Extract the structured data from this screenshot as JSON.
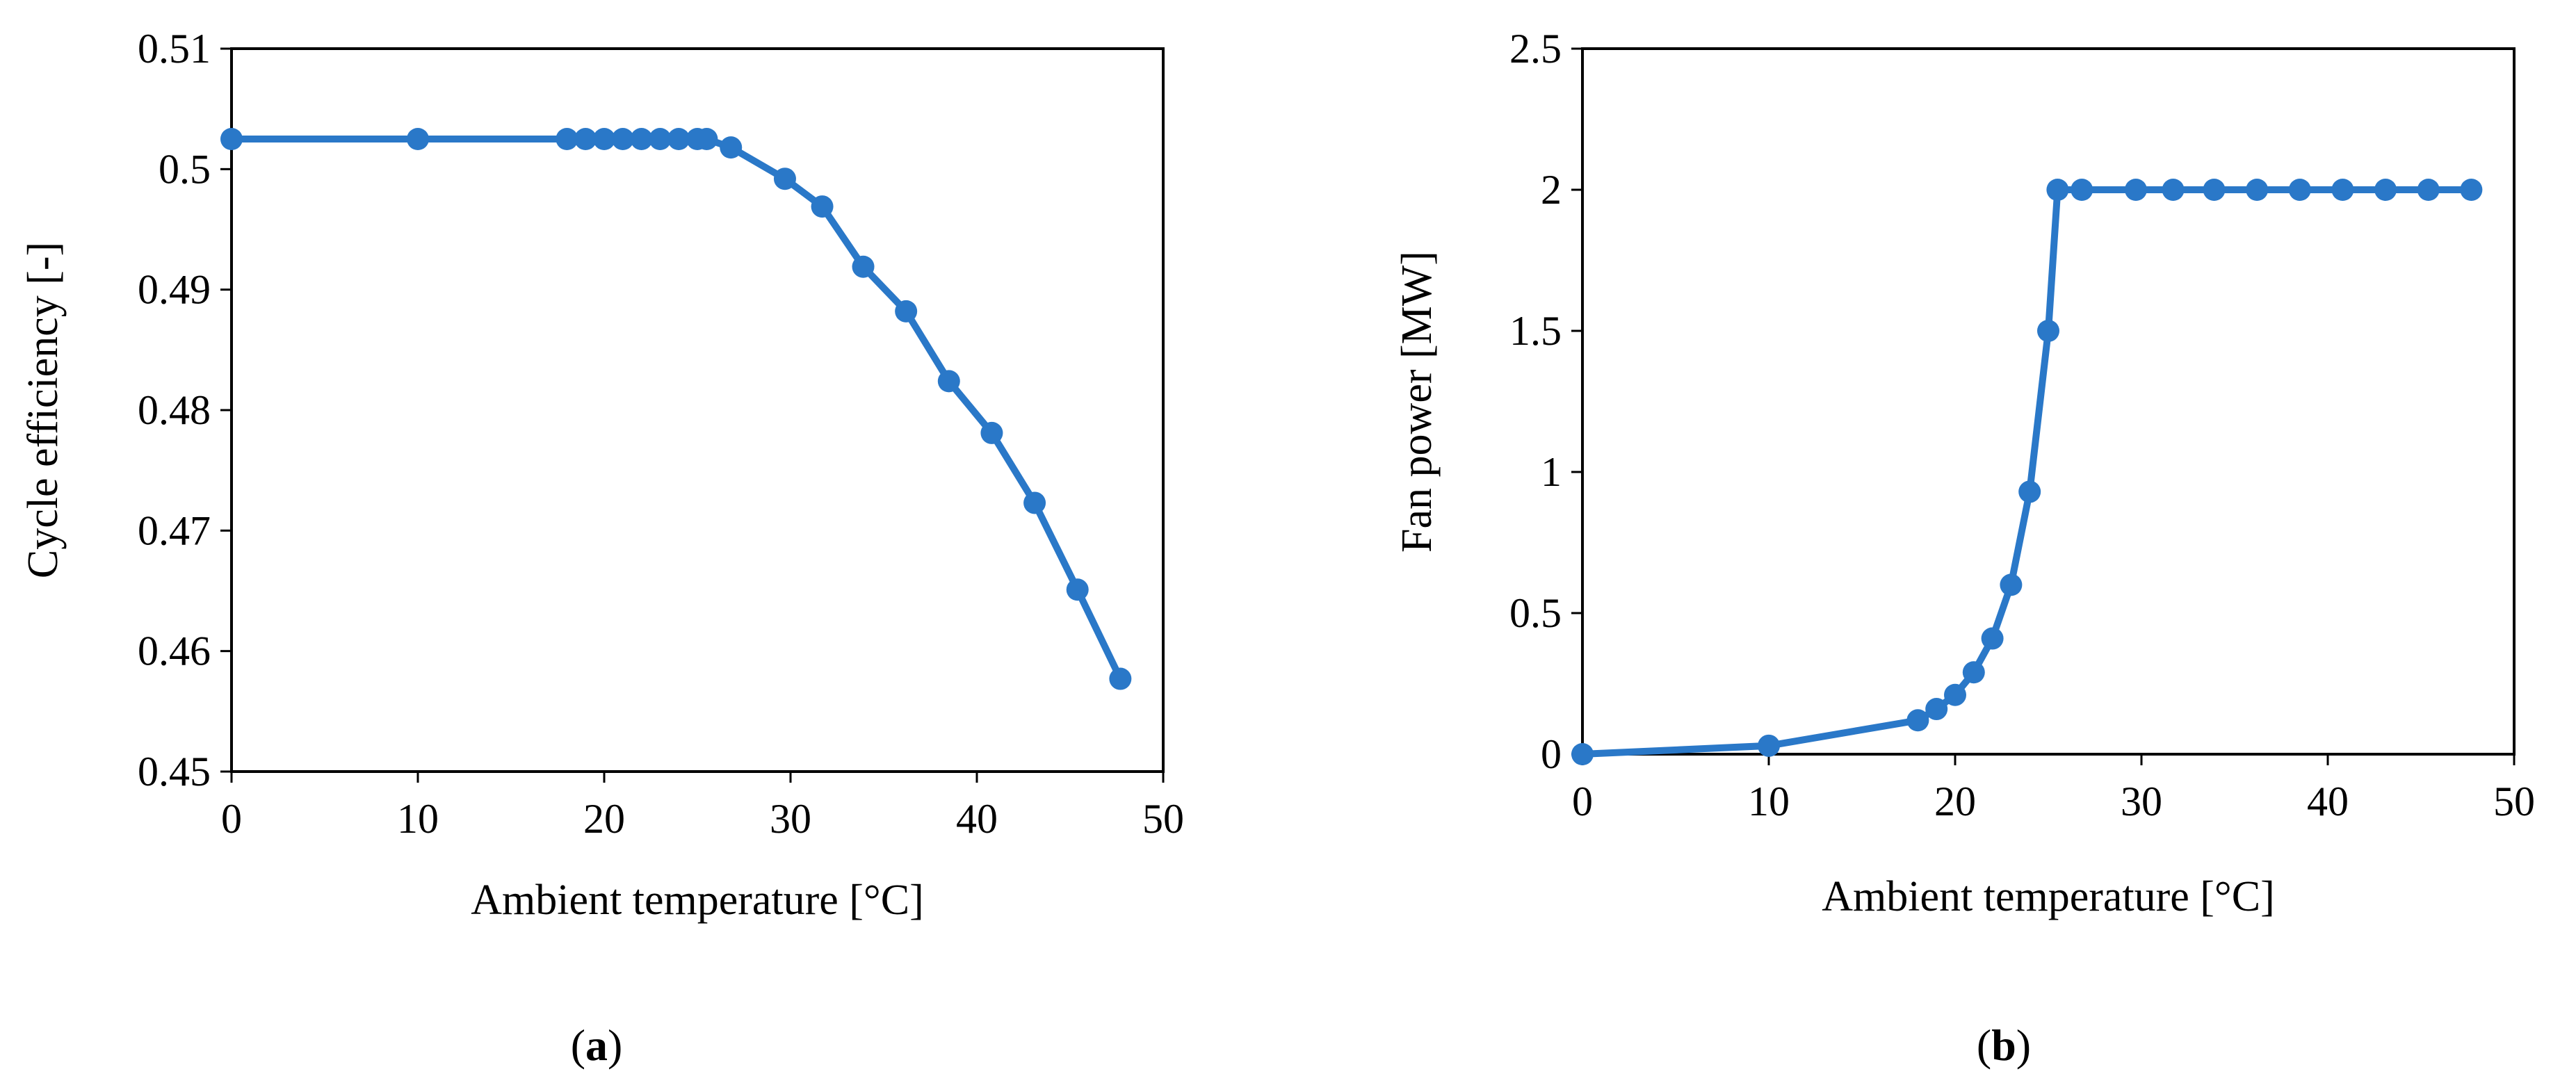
{
  "chart_data": [
    {
      "type": "line",
      "panel_label": "(a)",
      "panel_label_parts": [
        "(",
        "a",
        ")"
      ],
      "title": "",
      "xlabel": "Ambient temperature [°C]",
      "ylabel": "Cycle efficiency [-]",
      "xlim": [
        0,
        50
      ],
      "ylim": [
        0.45,
        0.51
      ],
      "xticks": [
        0,
        10,
        20,
        30,
        40,
        50
      ],
      "yticks": [
        0.45,
        0.46,
        0.47,
        0.48,
        0.49,
        0.5,
        0.51
      ],
      "ytick_labels": [
        "0.45",
        "0.46",
        "0.47",
        "0.48",
        "0.49",
        "0.5",
        "0.51"
      ],
      "grid": false,
      "legend": "none",
      "series": [
        {
          "name": "Cycle efficiency",
          "color": "#2a78c8",
          "x": [
            0,
            10,
            18,
            19,
            20,
            21,
            22,
            23,
            24,
            25,
            25.5,
            26.8,
            29.7,
            31.7,
            33.9,
            36.2,
            38.5,
            40.8,
            43.1,
            45.4,
            47.7
          ],
          "y": [
            0.5025,
            0.5025,
            0.5025,
            0.5025,
            0.5025,
            0.5025,
            0.5025,
            0.5025,
            0.5025,
            0.5025,
            0.5025,
            0.5018,
            0.4992,
            0.4969,
            0.4919,
            0.4882,
            0.4824,
            0.4781,
            0.4723,
            0.4651,
            0.4577
          ]
        }
      ]
    },
    {
      "type": "line",
      "panel_label": "(b)",
      "panel_label_parts": [
        "(",
        "b",
        ")"
      ],
      "title": "",
      "xlabel": "Ambient temperature [°C]",
      "ylabel": "Fan power [MW]",
      "xlim": [
        0,
        50
      ],
      "ylim": [
        0,
        2.5
      ],
      "xticks": [
        0,
        10,
        20,
        30,
        40,
        50
      ],
      "yticks": [
        0,
        0.5,
        1,
        1.5,
        2,
        2.5
      ],
      "ytick_labels": [
        "0",
        "0.5",
        "1",
        "1.5",
        "2",
        "2.5"
      ],
      "grid": false,
      "legend": "none",
      "series": [
        {
          "name": "Fan power",
          "color": "#2a78c8",
          "x": [
            0,
            10,
            18,
            19,
            20,
            21,
            22,
            23,
            24,
            25,
            25.5,
            26.8,
            29.7,
            31.7,
            33.9,
            36.2,
            38.5,
            40.8,
            43.1,
            45.4,
            47.7
          ],
          "y": [
            0,
            0.03,
            0.12,
            0.16,
            0.21,
            0.29,
            0.41,
            0.6,
            0.93,
            1.5,
            2.0,
            2.0,
            2.0,
            2.0,
            2.0,
            2.0,
            2.0,
            2.0,
            2.0,
            2.0,
            2.0
          ]
        }
      ]
    }
  ]
}
